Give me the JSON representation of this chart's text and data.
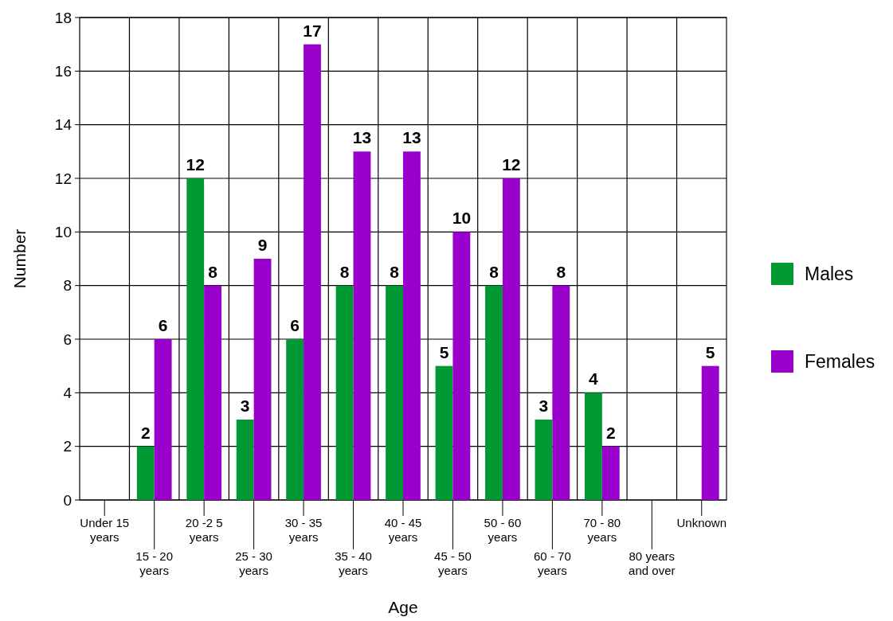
{
  "chart_data": {
    "type": "bar",
    "xlabel": "Age",
    "ylabel": "Number",
    "categories": [
      "Under 15 years",
      "15 - 20 years",
      "20 -2 5 years",
      "25 - 30 years",
      "30 - 35 years",
      "35 - 40 years",
      "40 - 45 years",
      "45 - 50 years",
      "50 - 60 years",
      "60 - 70 years",
      "70 - 80 years",
      "80 years and over",
      "Unknown"
    ],
    "series": [
      {
        "name": "Males",
        "color": "#009933",
        "values": [
          null,
          2,
          12,
          3,
          6,
          8,
          8,
          5,
          8,
          3,
          4,
          null,
          null
        ]
      },
      {
        "name": "Females",
        "color": "#9900cc",
        "values": [
          null,
          6,
          8,
          9,
          17,
          13,
          13,
          10,
          12,
          8,
          2,
          null,
          5
        ]
      }
    ],
    "ylim": [
      0,
      18
    ],
    "yticks": [
      0,
      2,
      4,
      6,
      8,
      10,
      12,
      14,
      16,
      18
    ],
    "grid": true,
    "legend": "right",
    "data_labels": true
  }
}
